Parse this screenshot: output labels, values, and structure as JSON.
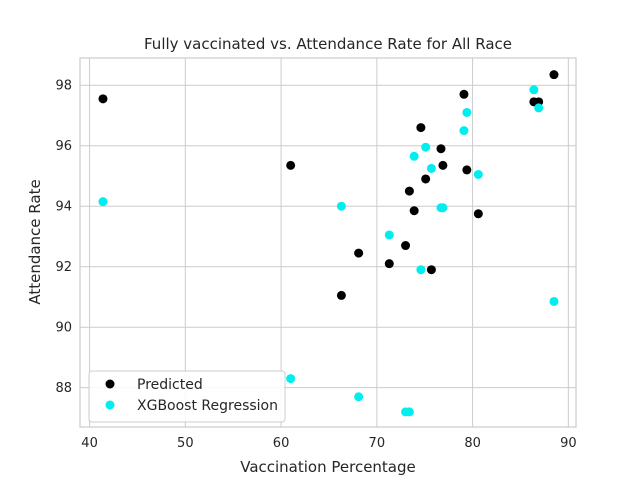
{
  "chart_data": {
    "type": "scatter",
    "title": "Fully vaccinated vs. Attendance Rate for All Race",
    "xlabel": "Vaccination Percentage",
    "ylabel": "Attendance Rate",
    "xlim": [
      39.0,
      90.8
    ],
    "ylim": [
      86.7,
      98.9
    ],
    "xticks": [
      40,
      50,
      60,
      70,
      80,
      90
    ],
    "yticks": [
      88,
      90,
      92,
      94,
      96,
      98
    ],
    "grid": true,
    "legend_position": "lower-left",
    "series": [
      {
        "name": "Predicted",
        "color": "#000000",
        "points": [
          [
            41.4,
            97.55
          ],
          [
            61.0,
            95.35
          ],
          [
            66.3,
            91.05
          ],
          [
            68.1,
            92.45
          ],
          [
            71.3,
            92.1
          ],
          [
            73.0,
            92.7
          ],
          [
            73.4,
            94.5
          ],
          [
            73.9,
            93.85
          ],
          [
            74.6,
            96.6
          ],
          [
            75.1,
            94.9
          ],
          [
            75.7,
            91.9
          ],
          [
            76.7,
            95.9
          ],
          [
            76.9,
            95.35
          ],
          [
            79.1,
            97.7
          ],
          [
            79.4,
            95.2
          ],
          [
            80.6,
            93.75
          ],
          [
            86.4,
            97.45
          ],
          [
            86.9,
            97.45
          ],
          [
            88.5,
            98.35
          ]
        ]
      },
      {
        "name": "XGBoost Regression",
        "color": "#00eeee",
        "points": [
          [
            41.4,
            94.15
          ],
          [
            61.0,
            88.3
          ],
          [
            66.3,
            94.0
          ],
          [
            68.1,
            87.7
          ],
          [
            71.3,
            93.05
          ],
          [
            73.0,
            87.2
          ],
          [
            73.4,
            87.2
          ],
          [
            73.9,
            95.65
          ],
          [
            74.6,
            91.9
          ],
          [
            75.1,
            95.95
          ],
          [
            75.7,
            95.25
          ],
          [
            76.7,
            93.95
          ],
          [
            76.9,
            93.95
          ],
          [
            79.1,
            96.5
          ],
          [
            79.4,
            97.1
          ],
          [
            80.6,
            95.05
          ],
          [
            86.4,
            97.85
          ],
          [
            86.9,
            97.25
          ],
          [
            88.5,
            90.85
          ]
        ]
      }
    ]
  }
}
